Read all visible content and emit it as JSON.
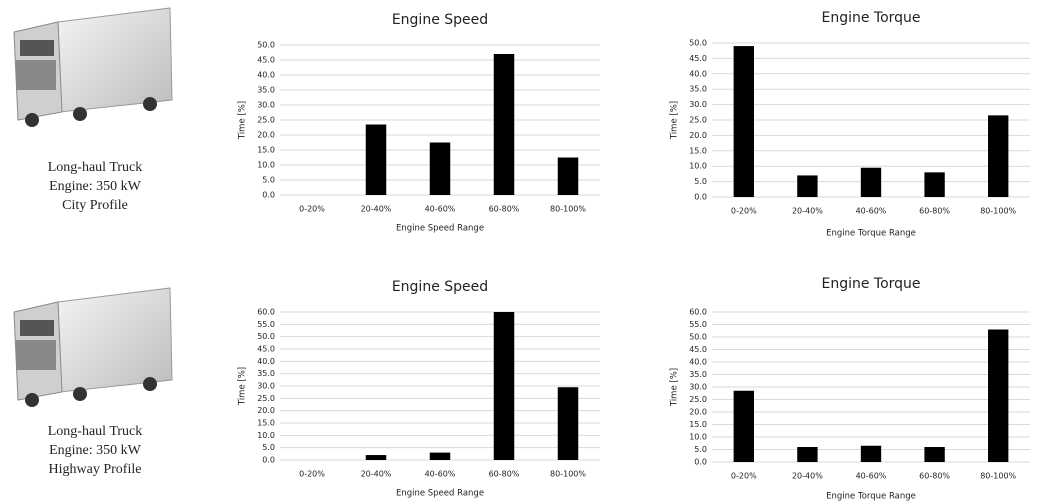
{
  "captions": [
    [
      "Long-haul Truck",
      "Engine: 350 kW",
      "City Profile"
    ],
    [
      "Long-haul Truck",
      "Engine: 350 kW",
      "Highway Profile"
    ]
  ],
  "chart_data": [
    {
      "type": "bar",
      "title": "Engine Speed",
      "x_label": "Engine Speed Range",
      "y_label": "Time [%]",
      "categories": [
        "0-20%",
        "20-40%",
        "40-60%",
        "60-80%",
        "80-100%"
      ],
      "values": [
        0,
        23.5,
        17.5,
        47,
        12.5
      ],
      "color": "#000000",
      "ylim": [
        0,
        50
      ],
      "grid": true,
      "yticks": [
        {
          "value": 0,
          "label": "0.0"
        },
        {
          "value": 5,
          "label": "5.0"
        },
        {
          "value": 10,
          "label": "10.0"
        },
        {
          "value": 15,
          "label": "15.0"
        },
        {
          "value": 20,
          "label": "20.0"
        },
        {
          "value": 25,
          "label": "25.0"
        },
        {
          "value": 30,
          "label": "30.0"
        },
        {
          "value": 35,
          "label": "35.0"
        },
        {
          "value": 40,
          "label": "40.0"
        },
        {
          "value": 45,
          "label": "45.0"
        },
        {
          "value": 50,
          "label": "50.0"
        }
      ]
    },
    {
      "type": "bar",
      "title": "Engine Torque",
      "x_label": "Engine Torque Range",
      "y_label": "Time [%]",
      "categories": [
        "0-20%",
        "20-40%",
        "40-60%",
        "60-80%",
        "80-100%"
      ],
      "values": [
        49,
        7,
        9.5,
        8,
        26.5
      ],
      "color": "#000000",
      "ylim": [
        0,
        50
      ],
      "grid": true,
      "yticks": [
        {
          "value": 0,
          "label": "0.0"
        },
        {
          "value": 5,
          "label": "5.0"
        },
        {
          "value": 10,
          "label": "10.0"
        },
        {
          "value": 15,
          "label": "15.0"
        },
        {
          "value": 20,
          "label": "20.0"
        },
        {
          "value": 25,
          "label": "25.0"
        },
        {
          "value": 30,
          "label": "30.0"
        },
        {
          "value": 35,
          "label": "35.0"
        },
        {
          "value": 40,
          "label": "40.0"
        },
        {
          "value": 45,
          "label": "45.0"
        },
        {
          "value": 50,
          "label": "50.0"
        }
      ]
    },
    {
      "type": "bar",
      "title": "Engine Speed",
      "x_label": "Engine Speed Range",
      "y_label": "Time [%]",
      "categories": [
        "0-20%",
        "20-40%",
        "40-60%",
        "60-80%",
        "80-100%"
      ],
      "values": [
        0,
        2,
        3,
        60,
        29.5
      ],
      "color": "#000000",
      "ylim": [
        0,
        60
      ],
      "grid": true,
      "yticks": [
        {
          "value": 0,
          "label": "0.0"
        },
        {
          "value": 5,
          "label": "5.0"
        },
        {
          "value": 10,
          "label": "10.0"
        },
        {
          "value": 15,
          "label": "15.0"
        },
        {
          "value": 20,
          "label": "20.0"
        },
        {
          "value": 25,
          "label": "25.0"
        },
        {
          "value": 30,
          "label": "30.0"
        },
        {
          "value": 35,
          "label": "35.0"
        },
        {
          "value": 40,
          "label": "40.0"
        },
        {
          "value": 45,
          "label": "45.0"
        },
        {
          "value": 50,
          "label": "50.0"
        },
        {
          "value": 55,
          "label": "55.0"
        },
        {
          "value": 60,
          "label": "60.0"
        }
      ]
    },
    {
      "type": "bar",
      "title": "Engine Torque",
      "x_label": "Engine Torque Range",
      "y_label": "Time [%]",
      "categories": [
        "0-20%",
        "20-40%",
        "40-60%",
        "60-80%",
        "80-100%"
      ],
      "values": [
        28.5,
        6,
        6.5,
        6,
        53
      ],
      "color": "#000000",
      "ylim": [
        0,
        60
      ],
      "grid": true,
      "yticks": [
        {
          "value": 0,
          "label": "0.0"
        },
        {
          "value": 5,
          "label": "5.0"
        },
        {
          "value": 10,
          "label": "10.0"
        },
        {
          "value": 15,
          "label": "15.0"
        },
        {
          "value": 20,
          "label": "20.0"
        },
        {
          "value": 25,
          "label": "25.0"
        },
        {
          "value": 30,
          "label": "30.0"
        },
        {
          "value": 35,
          "label": "35.0"
        },
        {
          "value": 40,
          "label": "40.0"
        },
        {
          "value": 45,
          "label": "45.0"
        },
        {
          "value": 50,
          "label": "50.0"
        },
        {
          "value": 55,
          "label": "55.0"
        },
        {
          "value": 60,
          "label": "60.0"
        }
      ]
    }
  ]
}
